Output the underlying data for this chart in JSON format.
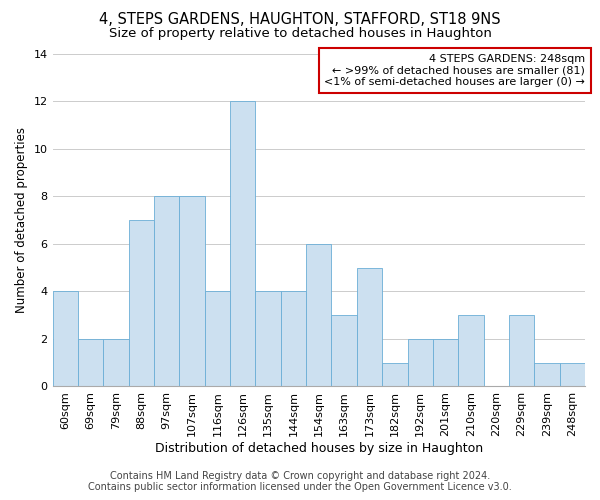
{
  "title": "4, STEPS GARDENS, HAUGHTON, STAFFORD, ST18 9NS",
  "subtitle": "Size of property relative to detached houses in Haughton",
  "xlabel": "Distribution of detached houses by size in Haughton",
  "ylabel": "Number of detached properties",
  "categories": [
    "60sqm",
    "69sqm",
    "79sqm",
    "88sqm",
    "97sqm",
    "107sqm",
    "116sqm",
    "126sqm",
    "135sqm",
    "144sqm",
    "154sqm",
    "163sqm",
    "173sqm",
    "182sqm",
    "192sqm",
    "201sqm",
    "210sqm",
    "220sqm",
    "229sqm",
    "239sqm",
    "248sqm"
  ],
  "values": [
    4,
    2,
    2,
    7,
    8,
    8,
    4,
    12,
    4,
    4,
    6,
    3,
    5,
    1,
    2,
    2,
    3,
    0,
    3,
    1,
    1
  ],
  "bar_color": "#cce0f0",
  "bar_edge_color": "#6aaed6",
  "annotation_title": "4 STEPS GARDENS: 248sqm",
  "annotation_line1": "← >99% of detached houses are smaller (81)",
  "annotation_line2": "<1% of semi-detached houses are larger (0) →",
  "annotation_box_color": "#ffffff",
  "annotation_box_edge_color": "#cc0000",
  "ylim": [
    0,
    14
  ],
  "yticks": [
    0,
    2,
    4,
    6,
    8,
    10,
    12,
    14
  ],
  "title_fontsize": 10.5,
  "subtitle_fontsize": 9.5,
  "xlabel_fontsize": 9,
  "ylabel_fontsize": 8.5,
  "tick_fontsize": 8,
  "annotation_fontsize": 8,
  "footer_fontsize": 7,
  "background_color": "#ffffff",
  "grid_color": "#cccccc",
  "footer_line1": "Contains HM Land Registry data © Crown copyright and database right 2024.",
  "footer_line2": "Contains public sector information licensed under the Open Government Licence v3.0."
}
